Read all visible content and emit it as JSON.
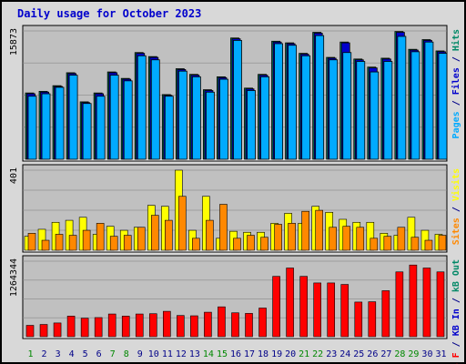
{
  "chart_data": {
    "type": "bar",
    "title": "Daily usage for October 2023",
    "days": [
      "1",
      "2",
      "3",
      "4",
      "5",
      "6",
      "7",
      "8",
      "9",
      "10",
      "11",
      "12",
      "13",
      "14",
      "15",
      "16",
      "17",
      "18",
      "19",
      "20",
      "21",
      "22",
      "23",
      "24",
      "25",
      "26",
      "27",
      "28",
      "29",
      "30",
      "31"
    ],
    "weekend_days": [
      "1",
      "7",
      "8",
      "14",
      "15",
      "21",
      "22",
      "28",
      "29"
    ],
    "panels": [
      {
        "id": "hits",
        "axis_max_label": "15873",
        "axis_max": 15873,
        "right_label": [
          {
            "text": "Pages",
            "color": "#00aaff"
          },
          {
            "text": " / ",
            "color": "#000088"
          },
          {
            "text": "Files",
            "color": "#0000cc"
          },
          {
            "text": " / ",
            "color": "#000088"
          },
          {
            "text": "Hits",
            "color": "#008866"
          }
        ],
        "series": [
          {
            "name": "Hits",
            "color": "#008866",
            "values": [
              8200,
              8400,
              9100,
              10700,
              7100,
              8200,
              10800,
              10000,
              13200,
              12700,
              8000,
              11200,
              10500,
              8600,
              10200,
              15000,
              8800,
              10500,
              14600,
              14400,
              13100,
              15700,
              12600,
              14500,
              12400,
              11400,
              12500,
              15800,
              13600,
              14800,
              13400
            ]
          },
          {
            "name": "Files",
            "color": "#0000cc",
            "values": [
              8100,
              8300,
              9000,
              10600,
              7000,
              8100,
              10700,
              9900,
              13100,
              12600,
              7900,
              11100,
              10400,
              8500,
              10100,
              14900,
              8700,
              10400,
              14500,
              14300,
              13000,
              15600,
              12500,
              14400,
              12300,
              11300,
              12400,
              15700,
              13500,
              14700,
              13300
            ]
          },
          {
            "name": "Pages",
            "color": "#00aaff",
            "values": [
              7800,
              8100,
              8900,
              10400,
              6900,
              7800,
              10400,
              9700,
              12800,
              12300,
              7800,
              10900,
              10200,
              8300,
              9900,
              14700,
              8500,
              10200,
              14300,
              14100,
              12800,
              15300,
              12300,
              13200,
              12100,
              10800,
              12100,
              15200,
              13300,
              14500,
              13100
            ]
          }
        ]
      },
      {
        "id": "visits",
        "axis_max_label": "401",
        "axis_max": 401,
        "right_label": [
          {
            "text": "Sites",
            "color": "#ff8800"
          },
          {
            "text": " / ",
            "color": "#000088"
          },
          {
            "text": "Visits",
            "color": "#ffff00"
          }
        ],
        "series": [
          {
            "name": "Visits",
            "color": "#ffff00",
            "values": [
              70,
              105,
              140,
              150,
              165,
              80,
              120,
              100,
              115,
              225,
              220,
              401,
              100,
              270,
              60,
              95,
              90,
              90,
              135,
              185,
              135,
              220,
              190,
              155,
              140,
              140,
              85,
              75,
              165,
              100,
              80
            ]
          },
          {
            "name": "Sites",
            "color": "#ff8800",
            "values": [
              85,
              50,
              80,
              75,
              100,
              135,
              70,
              75,
              115,
              175,
              150,
              270,
              60,
              150,
              230,
              60,
              75,
              65,
              130,
              135,
              195,
              200,
              115,
              120,
              115,
              60,
              70,
              115,
              65,
              50,
              75
            ]
          }
        ]
      },
      {
        "id": "kb",
        "axis_max_label": "1264344",
        "axis_max": 1264344,
        "right_label": [
          {
            "text": "KB F",
            "color": "#ff0000"
          },
          {
            "text": " / ",
            "color": "#000088"
          },
          {
            "text": "KB In",
            "color": "#0000cc"
          },
          {
            "text": " / ",
            "color": "#000088"
          },
          {
            "text": "kB Out",
            "color": "#008866"
          }
        ],
        "series": [
          {
            "name": "KB F",
            "color": "#ff0000",
            "values": [
              190000,
              205000,
              230000,
              345000,
              310000,
              320000,
              380000,
              345000,
              380000,
              385000,
              425000,
              355000,
              350000,
              410000,
              500000,
              400000,
              390000,
              480000,
              1010000,
              1150000,
              1010000,
              900000,
              900000,
              875000,
              580000,
              585000,
              770000,
              1085000,
              1200000,
              1150000,
              1085000
            ]
          }
        ]
      }
    ]
  },
  "colors": {
    "frame_bg": "#d8d8d8",
    "plot_bg": "#c0c0c0",
    "title": "#0000cc",
    "weekday_label": "#000088",
    "weekend_label": "#008800",
    "gridline": "#888888"
  }
}
